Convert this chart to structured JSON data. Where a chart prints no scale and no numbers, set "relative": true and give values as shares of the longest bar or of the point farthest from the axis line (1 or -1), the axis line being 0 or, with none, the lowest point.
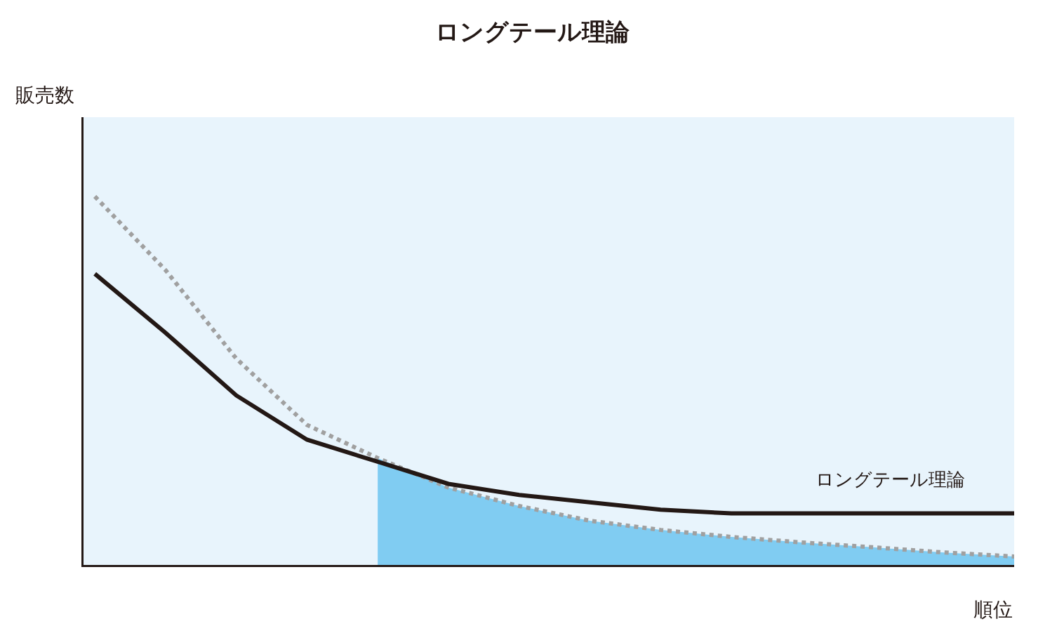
{
  "chart_data": {
    "type": "line",
    "title": "ロングテール理論",
    "xlabel": "順位",
    "ylabel": "販売数",
    "relative": true,
    "legend": false,
    "marker": "none",
    "categories": [
      null,
      null,
      null,
      null,
      null,
      null,
      null,
      null,
      null,
      null,
      null,
      null,
      null,
      null
    ],
    "series": [
      {
        "type": "area",
        "color": "#80ccf2",
        "values": [
          null,
          null,
          null,
          null,
          0.29,
          0.21,
          0.16,
          0.12,
          0.095,
          0.076,
          0.061,
          0.048,
          0.034,
          0.023
        ]
      },
      {
        "color": "#a0a0a0",
        "line_style": "dotted",
        "values": [
          1,
          0.8,
          0.56,
          0.38,
          0.29,
          0.21,
          0.16,
          0.12,
          0.095,
          0.076,
          0.061,
          0.048,
          0.034,
          0.023
        ]
      },
      {
        "name": "ロングテール理論",
        "color": "#231815",
        "line_style": "solid",
        "values": [
          0.79,
          0.63,
          0.46,
          0.34,
          0.28,
          0.22,
          0.19,
          0.17,
          0.15,
          0.14,
          0.14,
          0.14,
          0.14,
          0.14
        ]
      }
    ]
  }
}
